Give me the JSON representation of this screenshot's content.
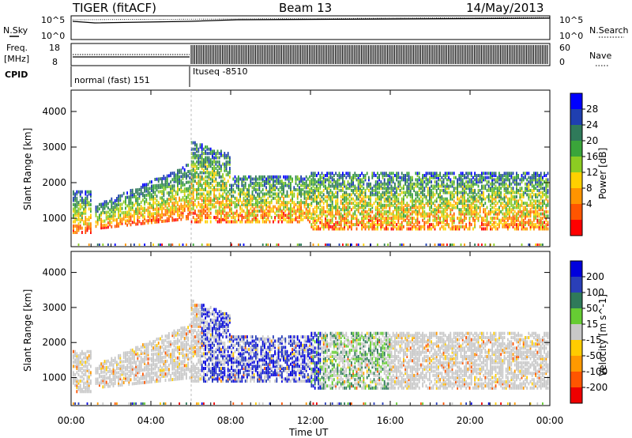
{
  "header": {
    "radar": "TIGER (fitACF)",
    "beam": "Beam 13",
    "date": "14/May/2013"
  },
  "top_panels": {
    "nsky_label": "N.Sky",
    "nsky_ticks": [
      "10^5",
      "10^0"
    ],
    "nsearch_label": "N.Search",
    "nsearch_ticks": [
      "10^5",
      "10^0"
    ],
    "freq_label_1": "Freq.",
    "freq_label_2": "[MHz]",
    "freq_ticks": [
      "18",
      "8"
    ],
    "nave_label": "Nave",
    "nave_ticks": [
      "60",
      "0"
    ],
    "cpid_label": "CPID",
    "cpid_segments": [
      {
        "label": "normal (fast) 151",
        "start_hour": 0,
        "end_hour": 6
      },
      {
        "label": "Ituseq -8510",
        "start_hour": 6,
        "end_hour": 24
      }
    ]
  },
  "chart_data": [
    {
      "type": "heatmap",
      "parameter": "power",
      "ylabel": "Slant Range [km]",
      "xlabel": "",
      "yticks": [
        "1000",
        "2000",
        "3000",
        "4000"
      ],
      "ylim": [
        200,
        4600
      ],
      "xlim": [
        0,
        24
      ],
      "colorbar_label": "Power [dB]",
      "colorbar_ticks": [
        "4",
        "8",
        "12",
        "16",
        "20",
        "24",
        "28"
      ],
      "colorbar_colors": [
        "#0000ff",
        "#1f3fb0",
        "#2f7a5a",
        "#3aa53a",
        "#8ccc22",
        "#ffd000",
        "#ff9400",
        "#ff5500",
        "#ff0000"
      ]
    },
    {
      "type": "heatmap",
      "parameter": "velocity",
      "ylabel": "Slant Range [km]",
      "xlabel": "Time UT",
      "yticks": [
        "1000",
        "2000",
        "3000",
        "4000"
      ],
      "xticks": [
        "00:00",
        "04:00",
        "08:00",
        "12:00",
        "16:00",
        "20:00",
        "00:00"
      ],
      "ylim": [
        200,
        4600
      ],
      "xlim": [
        0,
        24
      ],
      "colorbar_label": "Velocity [m s^-1]",
      "colorbar_ticks": [
        "200",
        "100",
        "50",
        "15",
        "-15",
        "-50",
        "-100",
        "-200"
      ],
      "colorbar_colors": [
        "#0000dd",
        "#2a3fb8",
        "#2f7a5a",
        "#66cc33",
        "#c8c8c8",
        "#ffcc00",
        "#ff9900",
        "#ff5500",
        "#ee0000"
      ]
    }
  ],
  "xaxis": {
    "ticks": [
      "00:00",
      "04:00",
      "08:00",
      "12:00",
      "16:00",
      "20:00",
      "00:00"
    ],
    "label": "Time UT"
  }
}
